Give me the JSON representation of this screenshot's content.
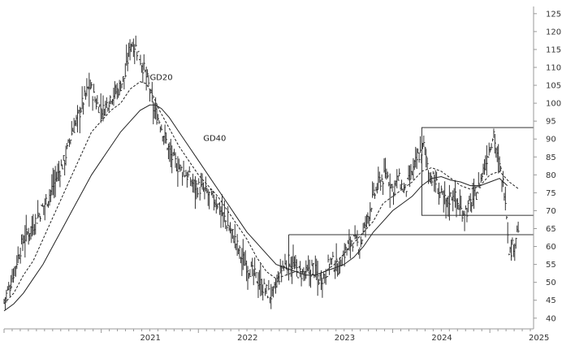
{
  "chart_data": {
    "type": "line",
    "title": "",
    "xlabel": "",
    "ylabel": "",
    "ylim": [
      37,
      127
    ],
    "xlim": [
      2020.0,
      2025.45
    ],
    "y_ticks": [
      40,
      45,
      50,
      55,
      60,
      65,
      70,
      75,
      80,
      85,
      90,
      95,
      100,
      105,
      110,
      115,
      120,
      125
    ],
    "y_tick_labels": [
      "40",
      "45",
      "50",
      "55",
      "60",
      "65",
      "70",
      "75",
      "80",
      "85",
      "90",
      "95",
      "100",
      "105",
      "110",
      "115",
      "120",
      "125"
    ],
    "x_ticks": [
      2021.0,
      2022.0,
      2023.0,
      2024.0,
      2025.0
    ],
    "x_tick_labels": [
      "2021",
      "2022",
      "2023",
      "2024",
      "2025"
    ],
    "grid": false,
    "y_axis_position": "right",
    "colors": {
      "price": "#333333",
      "ma": "#222222",
      "boxes": "#333333",
      "axis": "#999999"
    },
    "price_path": [
      [
        2020.0,
        45
      ],
      [
        2020.06,
        49
      ],
      [
        2020.12,
        55
      ],
      [
        2020.2,
        62
      ],
      [
        2020.3,
        66
      ],
      [
        2020.38,
        70
      ],
      [
        2020.46,
        74
      ],
      [
        2020.55,
        80
      ],
      [
        2020.62,
        84
      ],
      [
        2020.7,
        92
      ],
      [
        2020.76,
        96
      ],
      [
        2020.82,
        101
      ],
      [
        2020.88,
        105
      ],
      [
        2020.95,
        100
      ],
      [
        2021.02,
        98
      ],
      [
        2021.1,
        102
      ],
      [
        2021.18,
        104
      ],
      [
        2021.25,
        108
      ],
      [
        2021.3,
        117
      ],
      [
        2021.35,
        116
      ],
      [
        2021.42,
        111
      ],
      [
        2021.48,
        106
      ],
      [
        2021.54,
        98
      ],
      [
        2021.6,
        95
      ],
      [
        2021.66,
        90
      ],
      [
        2021.72,
        85
      ],
      [
        2021.8,
        82
      ],
      [
        2021.88,
        80
      ],
      [
        2021.96,
        77
      ],
      [
        2022.04,
        76
      ],
      [
        2022.12,
        74
      ],
      [
        2022.2,
        72
      ],
      [
        2022.28,
        67
      ],
      [
        2022.36,
        63
      ],
      [
        2022.44,
        57
      ],
      [
        2022.52,
        54
      ],
      [
        2022.6,
        51
      ],
      [
        2022.68,
        48
      ],
      [
        2022.76,
        46
      ],
      [
        2022.8,
        49
      ],
      [
        2022.86,
        54
      ],
      [
        2022.94,
        56
      ],
      [
        2023.02,
        53
      ],
      [
        2023.1,
        52
      ],
      [
        2023.18,
        54
      ],
      [
        2023.24,
        51
      ],
      [
        2023.3,
        52
      ],
      [
        2023.36,
        56
      ],
      [
        2023.44,
        54
      ],
      [
        2023.5,
        58
      ],
      [
        2023.58,
        62
      ],
      [
        2023.66,
        60
      ],
      [
        2023.72,
        66
      ],
      [
        2023.78,
        72
      ],
      [
        2023.86,
        78
      ],
      [
        2023.94,
        80
      ],
      [
        2024.0,
        76
      ],
      [
        2024.06,
        79
      ],
      [
        2024.12,
        75
      ],
      [
        2024.18,
        79
      ],
      [
        2024.26,
        85
      ],
      [
        2024.32,
        88
      ],
      [
        2024.38,
        80
      ],
      [
        2024.44,
        78
      ],
      [
        2024.5,
        74
      ],
      [
        2024.56,
        72
      ],
      [
        2024.62,
        75
      ],
      [
        2024.7,
        70
      ],
      [
        2024.76,
        70
      ],
      [
        2024.82,
        73
      ],
      [
        2024.88,
        76
      ],
      [
        2024.94,
        82
      ],
      [
        2025.0,
        88
      ],
      [
        2025.04,
        92
      ],
      [
        2025.08,
        84
      ],
      [
        2025.12,
        80
      ],
      [
        2025.16,
        74
      ],
      [
        2025.2,
        58
      ],
      [
        2025.25,
        61
      ],
      [
        2025.3,
        66
      ]
    ],
    "series": [
      {
        "name": "GD20",
        "style": "dashed",
        "values": [
          [
            2020.0,
            44
          ],
          [
            2020.1,
            47
          ],
          [
            2020.2,
            52
          ],
          [
            2020.3,
            56
          ],
          [
            2020.4,
            62
          ],
          [
            2020.5,
            68
          ],
          [
            2020.6,
            74
          ],
          [
            2020.7,
            80
          ],
          [
            2020.8,
            86
          ],
          [
            2020.9,
            92
          ],
          [
            2021.0,
            95
          ],
          [
            2021.1,
            98
          ],
          [
            2021.2,
            100
          ],
          [
            2021.3,
            104
          ],
          [
            2021.4,
            106
          ],
          [
            2021.46,
            105.5
          ],
          [
            2021.52,
            103
          ],
          [
            2021.6,
            98
          ],
          [
            2021.7,
            93
          ],
          [
            2021.8,
            88
          ],
          [
            2021.9,
            84
          ],
          [
            2022.0,
            80
          ],
          [
            2022.1,
            77
          ],
          [
            2022.2,
            74
          ],
          [
            2022.3,
            70
          ],
          [
            2022.4,
            66
          ],
          [
            2022.5,
            62
          ],
          [
            2022.6,
            57
          ],
          [
            2022.7,
            53
          ],
          [
            2022.8,
            51
          ],
          [
            2022.9,
            52
          ],
          [
            2023.0,
            53
          ],
          [
            2023.1,
            53
          ],
          [
            2023.2,
            52
          ],
          [
            2023.3,
            53
          ],
          [
            2023.4,
            55
          ],
          [
            2023.5,
            58
          ],
          [
            2023.6,
            61
          ],
          [
            2023.7,
            64
          ],
          [
            2023.8,
            67
          ],
          [
            2023.9,
            72
          ],
          [
            2024.0,
            74
          ],
          [
            2024.1,
            76
          ],
          [
            2024.2,
            78
          ],
          [
            2024.3,
            81
          ],
          [
            2024.4,
            82
          ],
          [
            2024.5,
            81
          ],
          [
            2024.6,
            79
          ],
          [
            2024.7,
            77
          ],
          [
            2024.8,
            76
          ],
          [
            2024.9,
            77
          ],
          [
            2025.0,
            80
          ],
          [
            2025.1,
            81
          ],
          [
            2025.2,
            78
          ],
          [
            2025.3,
            76
          ]
        ]
      },
      {
        "name": "GD40",
        "style": "solid",
        "values": [
          [
            2020.0,
            42
          ],
          [
            2020.1,
            44
          ],
          [
            2020.2,
            47
          ],
          [
            2020.3,
            51
          ],
          [
            2020.4,
            55
          ],
          [
            2020.5,
            60
          ],
          [
            2020.6,
            65
          ],
          [
            2020.7,
            70
          ],
          [
            2020.8,
            75
          ],
          [
            2020.9,
            80
          ],
          [
            2021.0,
            84
          ],
          [
            2021.1,
            88
          ],
          [
            2021.2,
            92
          ],
          [
            2021.3,
            95
          ],
          [
            2021.4,
            98
          ],
          [
            2021.5,
            99.5
          ],
          [
            2021.56,
            99.5
          ],
          [
            2021.62,
            98.5
          ],
          [
            2021.7,
            96
          ],
          [
            2021.8,
            92
          ],
          [
            2021.9,
            88
          ],
          [
            2022.0,
            84
          ],
          [
            2022.1,
            80
          ],
          [
            2022.2,
            76
          ],
          [
            2022.3,
            72
          ],
          [
            2022.4,
            68
          ],
          [
            2022.5,
            64
          ],
          [
            2022.6,
            61
          ],
          [
            2022.7,
            58
          ],
          [
            2022.8,
            55
          ],
          [
            2022.9,
            54
          ],
          [
            2023.0,
            53
          ],
          [
            2023.1,
            52
          ],
          [
            2023.2,
            52
          ],
          [
            2023.3,
            53
          ],
          [
            2023.4,
            54
          ],
          [
            2023.5,
            55
          ],
          [
            2023.6,
            57
          ],
          [
            2023.7,
            60
          ],
          [
            2023.8,
            64
          ],
          [
            2023.9,
            67
          ],
          [
            2024.0,
            70
          ],
          [
            2024.1,
            72
          ],
          [
            2024.2,
            74
          ],
          [
            2024.3,
            77
          ],
          [
            2024.4,
            79
          ],
          [
            2024.5,
            79.5
          ],
          [
            2024.6,
            78.5
          ],
          [
            2024.7,
            78
          ],
          [
            2024.8,
            77
          ],
          [
            2024.9,
            77
          ],
          [
            2025.0,
            78
          ],
          [
            2025.1,
            79
          ],
          [
            2025.18,
            77
          ]
        ]
      }
    ],
    "annotations": [
      {
        "text": "GD20",
        "x": 2021.5,
        "y": 106.5
      },
      {
        "text": "GD40",
        "x": 2022.05,
        "y": 89.5
      }
    ],
    "boxes": [
      {
        "x0": 2022.93,
        "x1": 2025.45,
        "y0": 63.3,
        "y1": 63.3
      },
      {
        "x0": 2024.3,
        "x1": 2025.45,
        "y0": 93.2,
        "y1": 68.7
      }
    ],
    "vertical_markers": [
      {
        "x": 2022.93,
        "y0": 50.5,
        "y1": 63.3
      }
    ]
  }
}
